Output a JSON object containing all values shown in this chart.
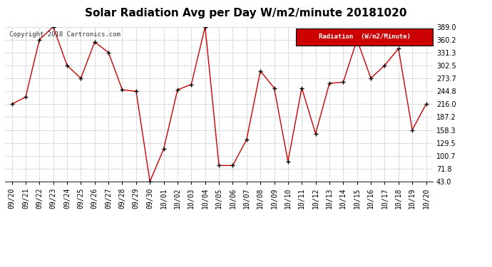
{
  "title": "Solar Radiation Avg per Day W/m2/minute 20181020",
  "copyright": "Copyright 2018 Cartronics.com",
  "legend_label": "Radiation  (W/m2/Minute)",
  "dates": [
    "09/20",
    "09/21",
    "09/22",
    "09/23",
    "09/24",
    "09/25",
    "09/26",
    "09/27",
    "09/28",
    "09/29",
    "09/30",
    "10/01",
    "10/02",
    "10/03",
    "10/04",
    "10/05",
    "10/06",
    "10/07",
    "10/08",
    "10/09",
    "10/10",
    "10/11",
    "10/12",
    "10/13",
    "10/14",
    "10/15",
    "10/16",
    "10/17",
    "10/18",
    "10/19",
    "10/20"
  ],
  "values": [
    216.0,
    232.0,
    360.2,
    389.0,
    302.5,
    273.7,
    355.0,
    331.3,
    248.0,
    244.8,
    43.0,
    116.0,
    248.0,
    260.0,
    389.0,
    79.0,
    79.0,
    136.5,
    290.0,
    252.0,
    88.0,
    252.0,
    150.0,
    262.5,
    265.0,
    360.2,
    273.7,
    302.5,
    340.0,
    158.3,
    216.0
  ],
  "ylim": [
    43.0,
    389.0
  ],
  "yticks": [
    43.0,
    71.8,
    100.7,
    129.5,
    158.3,
    187.2,
    216.0,
    244.8,
    273.7,
    302.5,
    331.3,
    360.2,
    389.0
  ],
  "line_color": "#cc0000",
  "marker_color": "#000000",
  "bg_color": "#ffffff",
  "grid_color": "#bbbbbb",
  "title_fontsize": 11,
  "tick_fontsize": 7,
  "legend_bg": "#cc0000",
  "legend_fg": "#ffffff"
}
